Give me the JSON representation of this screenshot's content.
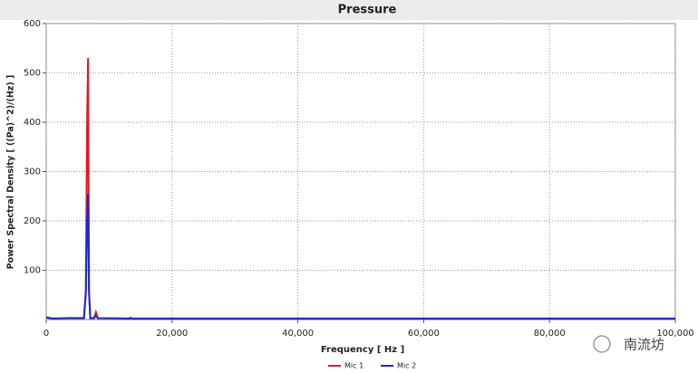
{
  "chart_data": {
    "type": "line",
    "title": "Pressure",
    "x_label": "Frequency [ Hz ]",
    "y_label": "Power Spectral Density [ ((Pa)^2)/(Hz) ]",
    "x": [
      0,
      1000,
      3400,
      6000,
      6300,
      6500,
      6650,
      6800,
      7000,
      7600,
      7900,
      8200,
      13200,
      13400,
      13600,
      50000,
      100000
    ],
    "series": [
      {
        "name": "Mic 1",
        "color": "#e8141c",
        "values": [
          5,
          2,
          3,
          3,
          60,
          400,
          530,
          60,
          3,
          3,
          15,
          3,
          2,
          4,
          2,
          2,
          2
        ]
      },
      {
        "name": "Mic 2",
        "color": "#1428e0",
        "values": [
          4,
          2,
          3,
          3,
          55,
          200,
          255,
          55,
          3,
          3,
          8,
          3,
          2,
          3,
          2,
          2,
          2
        ]
      }
    ],
    "xlim": [
      0,
      100000
    ],
    "xticks": [
      {
        "value": 0,
        "label": "0"
      },
      {
        "value": 20000,
        "label": "20,000"
      },
      {
        "value": 40000,
        "label": "40,000"
      },
      {
        "value": 60000,
        "label": "60,000"
      },
      {
        "value": 80000,
        "label": "80,000"
      },
      {
        "value": 100000,
        "label": "100,000"
      }
    ],
    "ylim": [
      0,
      600
    ],
    "yticks": [
      100,
      200,
      300,
      400,
      500,
      600
    ],
    "grid": true,
    "legend": "bottom",
    "watermark": "南流坊"
  }
}
